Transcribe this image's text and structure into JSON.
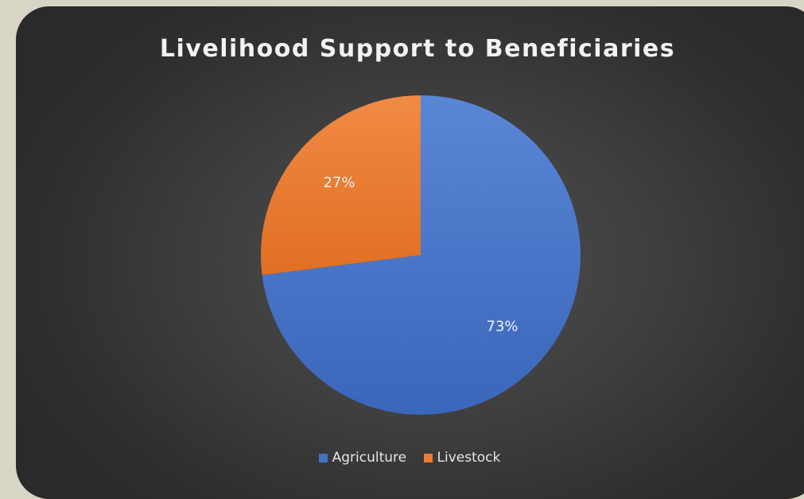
{
  "chart_data": {
    "type": "pie",
    "title": "Livelihood Support to Beneficiaries",
    "categories": [
      "Agriculture",
      "Livestock"
    ],
    "values": [
      73,
      27
    ],
    "data_labels": [
      "73%",
      "27%"
    ],
    "colors": [
      "#4472c4",
      "#ed7d31"
    ],
    "legend": "bottom"
  }
}
